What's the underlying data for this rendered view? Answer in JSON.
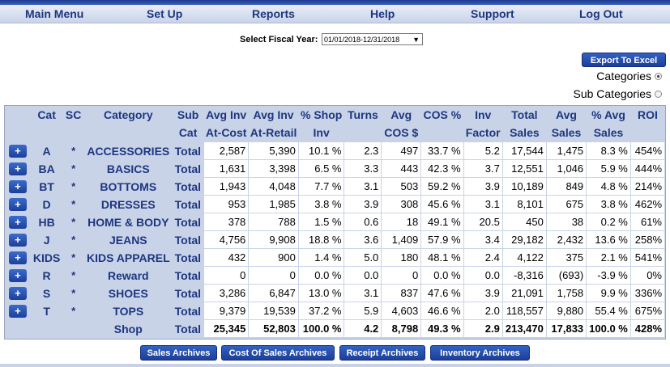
{
  "menu": [
    "Main Menu",
    "Set Up",
    "Reports",
    "Help",
    "Support",
    "Log Out"
  ],
  "fiscal_year": {
    "label": "Select Fiscal Year:",
    "value": "01/01/2018-12/31/2018",
    "arrow": "▼"
  },
  "export_button": "Export To Excel",
  "radios": {
    "categories": "Categories",
    "sub_categories": "Sub Categories",
    "selected": "categories"
  },
  "table": {
    "headers_top": [
      "Cat",
      "SC",
      "Category",
      "Sub",
      "Avg Inv",
      "Avg Inv",
      "% Shop",
      "Turns",
      "Avg",
      "COS %",
      "Inv",
      "Total",
      "Avg",
      "% Avg",
      "ROI"
    ],
    "headers_bottom": [
      "",
      "",
      "",
      "Cat",
      "At-Cost",
      "At-Retail",
      "Inv",
      "",
      "COS $",
      "",
      "Factor",
      "Sales",
      "Sales",
      "Sales",
      ""
    ],
    "plus_label": "+",
    "rows": [
      {
        "cat": "A",
        "sc": "*",
        "category": "ACCESSORIES",
        "sub": "Total",
        "vals": [
          "2,587",
          "5,390",
          "10.1 %",
          "2.3",
          "497",
          "33.7 %",
          "5.2",
          "17,544",
          "1,475",
          "8.3 %",
          "454%"
        ]
      },
      {
        "cat": "BA",
        "sc": "*",
        "category": "BASICS",
        "sub": "Total",
        "vals": [
          "1,631",
          "3,398",
          "6.5 %",
          "3.3",
          "443",
          "42.3 %",
          "3.7",
          "12,551",
          "1,046",
          "5.9 %",
          "444%"
        ]
      },
      {
        "cat": "BT",
        "sc": "*",
        "category": "BOTTOMS",
        "sub": "Total",
        "vals": [
          "1,943",
          "4,048",
          "7.7 %",
          "3.1",
          "503",
          "59.2 %",
          "3.9",
          "10,189",
          "849",
          "4.8 %",
          "214%"
        ]
      },
      {
        "cat": "D",
        "sc": "*",
        "category": "DRESSES",
        "sub": "Total",
        "vals": [
          "953",
          "1,985",
          "3.8 %",
          "3.9",
          "308",
          "45.6 %",
          "3.1",
          "8,101",
          "675",
          "3.8 %",
          "462%"
        ]
      },
      {
        "cat": "HB",
        "sc": "*",
        "category": "HOME & BODY",
        "sub": "Total",
        "vals": [
          "378",
          "788",
          "1.5 %",
          "0.6",
          "18",
          "49.1 %",
          "20.5",
          "450",
          "38",
          "0.2 %",
          "61%"
        ]
      },
      {
        "cat": "J",
        "sc": "*",
        "category": "JEANS",
        "sub": "Total",
        "vals": [
          "4,756",
          "9,908",
          "18.8 %",
          "3.6",
          "1,409",
          "57.9 %",
          "3.4",
          "29,182",
          "2,432",
          "13.6 %",
          "258%"
        ]
      },
      {
        "cat": "KIDS",
        "sc": "*",
        "category": "KIDS APPAREL",
        "sub": "Total",
        "vals": [
          "432",
          "900",
          "1.4 %",
          "5.0",
          "180",
          "48.1 %",
          "2.4",
          "4,122",
          "375",
          "2.1 %",
          "541%"
        ]
      },
      {
        "cat": "R",
        "sc": "*",
        "category": "Reward",
        "sub": "Total",
        "vals": [
          "0",
          "0",
          "0.0 %",
          "0.0",
          "0",
          "0.0 %",
          "0.0",
          "-8,316",
          "(693)",
          "-3.9 %",
          "0%"
        ]
      },
      {
        "cat": "S",
        "sc": "*",
        "category": "SHOES",
        "sub": "Total",
        "vals": [
          "3,286",
          "6,847",
          "13.0 %",
          "3.1",
          "837",
          "47.6 %",
          "3.9",
          "21,091",
          "1,758",
          "9.9 %",
          "336%"
        ]
      },
      {
        "cat": "T",
        "sc": "*",
        "category": "TOPS",
        "sub": "Total",
        "vals": [
          "9,379",
          "19,539",
          "37.2 %",
          "5.9",
          "4,603",
          "46.6 %",
          "2.0",
          "118,557",
          "9,880",
          "55.4 %",
          "675%"
        ]
      }
    ],
    "shop_row": {
      "category": "Shop",
      "sub": "Total",
      "vals": [
        "25,345",
        "52,803",
        "100.0 %",
        "4.2",
        "8,798",
        "49.3 %",
        "2.9",
        "213,470",
        "17,833",
        "100.0 %",
        "428%"
      ]
    }
  },
  "archive_buttons": [
    "Sales Archives",
    "Cost Of Sales Archives",
    "Receipt Archives",
    "Inventory Archives"
  ],
  "colors": {
    "header_blue": "#1d3680",
    "button_blue": "#1c3f9a",
    "table_bg": "#c9d3e8"
  }
}
